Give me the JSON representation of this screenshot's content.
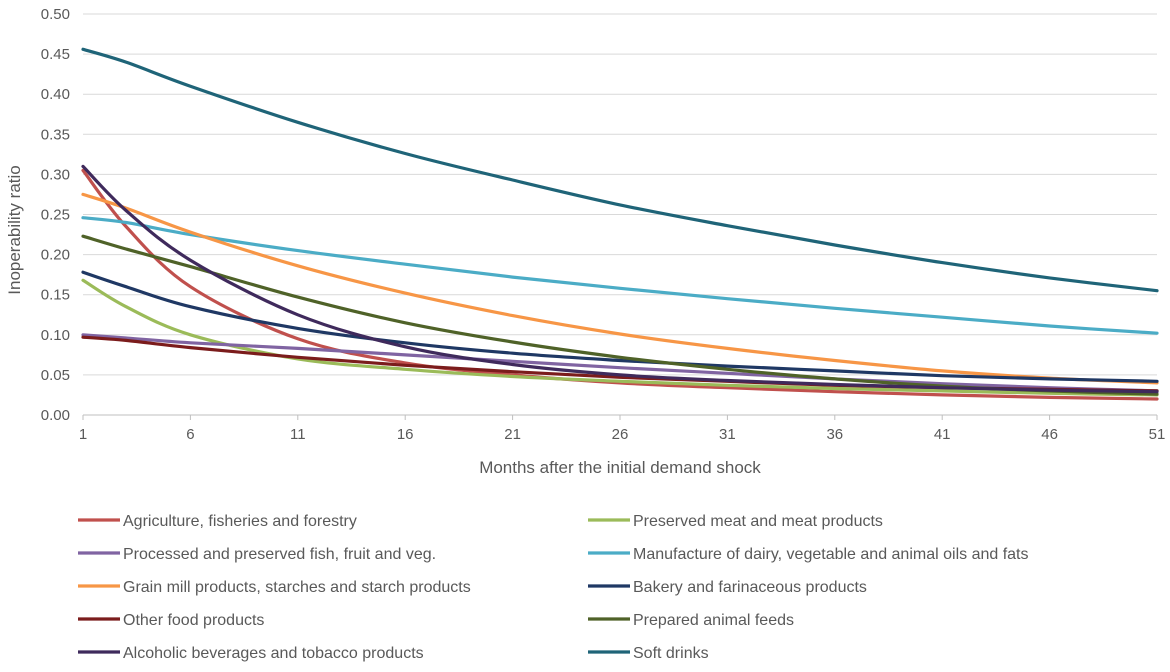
{
  "chart_data": {
    "type": "line",
    "title": "",
    "xlabel": "Months after the initial demand shock",
    "ylabel": "Inoperability ratio",
    "xlim": [
      1,
      51
    ],
    "ylim": [
      0,
      0.5
    ],
    "x_ticks": [
      1,
      6,
      11,
      16,
      21,
      26,
      31,
      36,
      41,
      46,
      51
    ],
    "y_ticks": [
      "0.00",
      "0.05",
      "0.10",
      "0.15",
      "0.20",
      "0.25",
      "0.30",
      "0.35",
      "0.40",
      "0.45",
      "0.50"
    ],
    "grid": "horizontal",
    "legend_position": "bottom",
    "x": [
      1,
      3,
      6,
      11,
      16,
      21,
      26,
      31,
      36,
      41,
      46,
      51
    ],
    "series": [
      {
        "name": "Agriculture, fisheries and forestry",
        "color": "#C0504D",
        "values": [
          0.305,
          0.235,
          0.16,
          0.095,
          0.065,
          0.05,
          0.04,
          0.034,
          0.029,
          0.025,
          0.022,
          0.02
        ]
      },
      {
        "name": "Preserved meat and meat products",
        "color": "#9BBB59",
        "values": [
          0.168,
          0.135,
          0.1,
          0.07,
          0.057,
          0.048,
          0.042,
          0.037,
          0.033,
          0.03,
          0.027,
          0.025
        ]
      },
      {
        "name": "Processed and preserved fish, fruit and veg.",
        "color": "#8064A2",
        "values": [
          0.1,
          0.096,
          0.09,
          0.083,
          0.075,
          0.067,
          0.059,
          0.052,
          0.045,
          0.039,
          0.034,
          0.03
        ]
      },
      {
        "name": "Manufacture of dairy, vegetable and animal oils and fats",
        "color": "#4BACC6",
        "values": [
          0.246,
          0.24,
          0.225,
          0.205,
          0.188,
          0.172,
          0.158,
          0.145,
          0.133,
          0.122,
          0.111,
          0.102
        ]
      },
      {
        "name": "Grain mill products, starches and starch products",
        "color": "#F79646",
        "values": [
          0.275,
          0.258,
          0.228,
          0.186,
          0.152,
          0.124,
          0.101,
          0.083,
          0.068,
          0.055,
          0.046,
          0.04
        ]
      },
      {
        "name": "Bakery and farinaceous products",
        "color": "#1F3864",
        "values": [
          0.178,
          0.16,
          0.135,
          0.108,
          0.09,
          0.077,
          0.068,
          0.061,
          0.055,
          0.049,
          0.045,
          0.042
        ]
      },
      {
        "name": "Other food products",
        "color": "#7B1C1C",
        "values": [
          0.097,
          0.093,
          0.084,
          0.072,
          0.062,
          0.054,
          0.047,
          0.042,
          0.037,
          0.034,
          0.032,
          0.03
        ]
      },
      {
        "name": "Prepared animal feeds",
        "color": "#4F6228",
        "values": [
          0.223,
          0.207,
          0.185,
          0.147,
          0.115,
          0.091,
          0.072,
          0.057,
          0.045,
          0.036,
          0.03,
          0.026
        ]
      },
      {
        "name": "Alcoholic beverages and tobacco products",
        "color": "#3F2A5C",
        "values": [
          0.31,
          0.255,
          0.193,
          0.125,
          0.085,
          0.063,
          0.05,
          0.043,
          0.038,
          0.034,
          0.031,
          0.029
        ]
      },
      {
        "name": "Soft drinks",
        "color": "#1F6478",
        "values": [
          0.456,
          0.44,
          0.41,
          0.365,
          0.326,
          0.293,
          0.262,
          0.236,
          0.212,
          0.19,
          0.171,
          0.155
        ]
      }
    ]
  }
}
